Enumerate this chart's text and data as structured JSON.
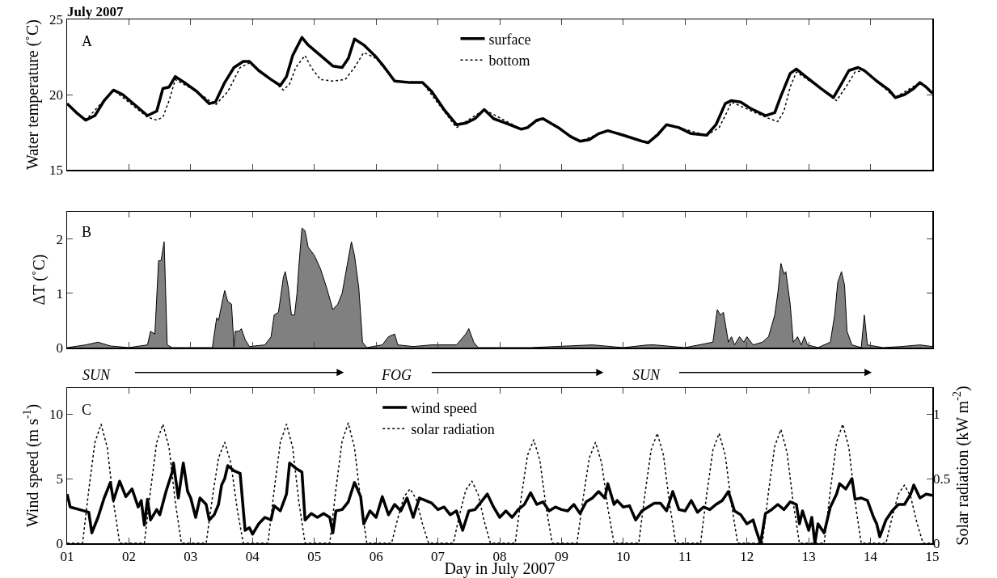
{
  "chart_data": [
    {
      "type": "line",
      "title": "July 2007",
      "ylabel": "Water temperature (˚C)",
      "annotations": [
        "A"
      ],
      "legend": "top",
      "tick_labels": "y",
      "xlim": [
        1,
        15
      ],
      "xticks": [
        {
          "value": 1,
          "label": null
        },
        {
          "value": 2,
          "label": null
        },
        {
          "value": 3,
          "label": null
        },
        {
          "value": 4,
          "label": null
        },
        {
          "value": 5,
          "label": null
        },
        {
          "value": 6,
          "label": null
        },
        {
          "value": 7,
          "label": null
        },
        {
          "value": 8,
          "label": null
        },
        {
          "value": 9,
          "label": null
        },
        {
          "value": 10,
          "label": null
        },
        {
          "value": 11,
          "label": null
        },
        {
          "value": 12,
          "label": null
        },
        {
          "value": 13,
          "label": null
        },
        {
          "value": 14,
          "label": null
        },
        {
          "value": 15,
          "label": null
        }
      ],
      "ylim": [
        15,
        25
      ],
      "yticks": [
        15,
        20,
        25
      ],
      "series": [
        {
          "name": "surface",
          "color": "#000000",
          "line_style": "solid",
          "x": [
            1.0,
            1.15,
            1.3,
            1.45,
            1.6,
            1.75,
            1.9,
            2.1,
            2.3,
            2.45,
            2.55,
            2.65,
            2.75,
            2.9,
            3.1,
            3.3,
            3.4,
            3.55,
            3.7,
            3.85,
            3.95,
            4.1,
            4.3,
            4.45,
            4.55,
            4.65,
            4.8,
            4.9,
            5.1,
            5.3,
            5.45,
            5.55,
            5.65,
            5.8,
            6.0,
            6.1,
            6.3,
            6.55,
            6.75,
            6.9,
            7.1,
            7.3,
            7.45,
            7.6,
            7.75,
            7.9,
            8.1,
            8.35,
            8.45,
            8.6,
            8.7,
            8.95,
            9.15,
            9.3,
            9.45,
            9.6,
            9.75,
            10.0,
            10.3,
            10.4,
            10.55,
            10.7,
            10.9,
            11.1,
            11.35,
            11.5,
            11.65,
            11.75,
            11.9,
            12.05,
            12.3,
            12.45,
            12.55,
            12.7,
            12.8,
            12.95,
            13.2,
            13.4,
            13.5,
            13.65,
            13.8,
            13.9,
            14.1,
            14.3,
            14.4,
            14.55,
            14.7,
            14.8,
            14.9,
            15.0
          ],
          "values": [
            19.4,
            18.8,
            18.3,
            18.6,
            19.6,
            20.3,
            20.0,
            19.3,
            18.6,
            18.9,
            20.4,
            20.5,
            21.2,
            20.8,
            20.2,
            19.4,
            19.5,
            20.8,
            21.8,
            22.2,
            22.2,
            21.6,
            21.0,
            20.6,
            21.2,
            22.6,
            23.8,
            23.3,
            22.6,
            21.9,
            21.8,
            22.4,
            23.7,
            23.3,
            22.5,
            22.0,
            20.9,
            20.8,
            20.8,
            20.2,
            19.0,
            18.0,
            18.1,
            18.4,
            19.0,
            18.4,
            18.1,
            17.7,
            17.8,
            18.3,
            18.4,
            17.8,
            17.2,
            16.9,
            17.0,
            17.4,
            17.6,
            17.3,
            16.9,
            16.8,
            17.3,
            18.0,
            17.8,
            17.4,
            17.3,
            18.0,
            19.4,
            19.6,
            19.5,
            19.1,
            18.6,
            18.8,
            19.9,
            21.4,
            21.7,
            21.2,
            20.4,
            19.8,
            20.5,
            21.6,
            21.8,
            21.6,
            20.9,
            20.3,
            19.8,
            20.0,
            20.4,
            20.8,
            20.5,
            20.1
          ]
        },
        {
          "name": "bottom",
          "color": "#000000",
          "line_style": "dotted",
          "x": [
            1.0,
            1.3,
            1.75,
            2.3,
            2.45,
            2.55,
            2.65,
            2.75,
            3.1,
            3.4,
            3.6,
            3.8,
            3.95,
            4.3,
            4.5,
            4.6,
            4.7,
            4.85,
            4.95,
            5.1,
            5.3,
            5.5,
            5.65,
            5.8,
            6.0,
            6.3,
            6.75,
            7.3,
            7.75,
            8.35,
            8.7,
            9.3,
            9.75,
            10.4,
            10.7,
            11.35,
            11.55,
            11.65,
            11.75,
            12.3,
            12.5,
            12.6,
            12.7,
            12.8,
            13.2,
            13.45,
            13.6,
            13.75,
            13.9,
            14.4,
            14.8,
            15.0
          ],
          "values": [
            19.4,
            18.3,
            20.3,
            18.5,
            18.3,
            18.5,
            19.6,
            21.0,
            20.2,
            19.3,
            20.2,
            21.8,
            22.1,
            21.0,
            20.3,
            20.7,
            21.8,
            22.6,
            21.8,
            21.0,
            20.9,
            21.0,
            21.8,
            22.8,
            22.4,
            20.9,
            20.8,
            17.8,
            19.0,
            17.7,
            18.4,
            16.9,
            17.6,
            16.8,
            18.0,
            17.3,
            17.8,
            18.6,
            19.5,
            18.5,
            18.2,
            18.9,
            20.5,
            21.5,
            20.4,
            19.6,
            20.5,
            21.5,
            21.6,
            19.8,
            20.8,
            20.1
          ]
        }
      ]
    },
    {
      "type": "area",
      "ylabel": "ΔT (˚C)",
      "annotations": [
        "B"
      ],
      "tick_labels": "y",
      "xlim": [
        1,
        15
      ],
      "xticks": [
        {
          "value": 1,
          "label": null
        },
        {
          "value": 2,
          "label": null
        },
        {
          "value": 3,
          "label": null
        },
        {
          "value": 4,
          "label": null
        },
        {
          "value": 5,
          "label": null
        },
        {
          "value": 6,
          "label": null
        },
        {
          "value": 7,
          "label": null
        },
        {
          "value": 8,
          "label": null
        },
        {
          "value": 9,
          "label": null
        },
        {
          "value": 10,
          "label": null
        },
        {
          "value": 11,
          "label": null
        },
        {
          "value": 12,
          "label": null
        },
        {
          "value": 13,
          "label": null
        },
        {
          "value": 14,
          "label": null
        },
        {
          "value": 15,
          "label": null
        }
      ],
      "ylim": [
        0,
        2.5
      ],
      "yticks": [
        0,
        1,
        2
      ],
      "series": [
        {
          "color": "#808080",
          "x": [
            1.0,
            1.3,
            1.5,
            1.7,
            2.0,
            2.3,
            2.35,
            2.42,
            2.48,
            2.52,
            2.57,
            2.62,
            2.7,
            3.35,
            3.42,
            3.45,
            3.52,
            3.55,
            3.6,
            3.66,
            3.7,
            3.72,
            3.78,
            3.82,
            3.88,
            3.95,
            4.2,
            4.3,
            4.35,
            4.42,
            4.5,
            4.53,
            4.58,
            4.63,
            4.68,
            4.72,
            4.75,
            4.8,
            4.85,
            4.9,
            5.0,
            5.1,
            5.2,
            5.3,
            5.38,
            5.45,
            5.6,
            5.65,
            5.72,
            5.78,
            5.85,
            6.1,
            6.2,
            6.3,
            6.35,
            6.6,
            6.9,
            7.3,
            7.45,
            7.5,
            7.58,
            7.65,
            8.5,
            9.5,
            10.0,
            10.4,
            10.5,
            11.0,
            11.45,
            11.52,
            11.57,
            11.62,
            11.7,
            11.75,
            11.8,
            11.88,
            11.95,
            12.0,
            12.1,
            12.25,
            12.35,
            12.45,
            12.5,
            12.55,
            12.6,
            12.63,
            12.7,
            12.75,
            12.82,
            12.88,
            12.93,
            12.98,
            13.15,
            13.35,
            13.42,
            13.47,
            13.53,
            13.58,
            13.62,
            13.7,
            13.85,
            13.9,
            13.95,
            14.2,
            14.5,
            14.8,
            15.0
          ],
          "values": [
            0,
            0.05,
            0.1,
            0.03,
            0,
            0.05,
            0.3,
            0.25,
            1.6,
            1.6,
            1.95,
            0.05,
            0,
            0,
            0.55,
            0.5,
            0.9,
            1.05,
            0.85,
            0.8,
            0.02,
            0.3,
            0.3,
            0.35,
            0.15,
            0.02,
            0.05,
            0.2,
            0.6,
            0.65,
            1.3,
            1.4,
            1.1,
            0.6,
            0.6,
            1.0,
            1.5,
            2.2,
            2.15,
            1.85,
            1.7,
            1.45,
            1.1,
            0.7,
            0.8,
            1.0,
            1.95,
            1.7,
            1.1,
            0.1,
            0,
            0.05,
            0.2,
            0.25,
            0.05,
            0.02,
            0.05,
            0.05,
            0.25,
            0.35,
            0.1,
            0,
            0,
            0.05,
            0,
            0.05,
            0.05,
            0,
            0.1,
            0.7,
            0.6,
            0.65,
            0.1,
            0.2,
            0.05,
            0.2,
            0.1,
            0.2,
            0.05,
            0.1,
            0.2,
            0.6,
            1.0,
            1.55,
            1.35,
            1.4,
            0.8,
            0.1,
            0.2,
            0.05,
            0.2,
            0.05,
            0,
            0.1,
            0.6,
            1.2,
            1.4,
            1.15,
            0.3,
            0.05,
            0,
            0.6,
            0.05,
            0,
            0.02,
            0.05,
            0.02
          ]
        }
      ]
    },
    {
      "type": "line",
      "xlabel": "Day in July 2007",
      "ylabel": "Wind speed (m s$^{-1}$)",
      "y2label": "Solar radiation (kW m$^{-2}$)",
      "annotations": [
        "C",
        "SUN",
        "FOG",
        "SUN"
      ],
      "legend": "top",
      "xlim": [
        1,
        15
      ],
      "xticks": [
        {
          "value": 1,
          "label": "01"
        },
        {
          "value": 2,
          "label": "02"
        },
        {
          "value": 3,
          "label": "03"
        },
        {
          "value": 4,
          "label": "04"
        },
        {
          "value": 5,
          "label": "05"
        },
        {
          "value": 6,
          "label": "06"
        },
        {
          "value": 7,
          "label": "07"
        },
        {
          "value": 8,
          "label": "08"
        },
        {
          "value": 9,
          "label": "09"
        },
        {
          "value": 10,
          "label": "10"
        },
        {
          "value": 11,
          "label": "11"
        },
        {
          "value": 12,
          "label": "12"
        },
        {
          "value": 13,
          "label": "13"
        },
        {
          "value": 14,
          "label": "14"
        },
        {
          "value": 15,
          "label": "15"
        }
      ],
      "ylim": [
        0,
        12
      ],
      "yticks": [
        0,
        5,
        10
      ],
      "y2lim": [
        0,
        1.2
      ],
      "y2ticks": [
        0,
        0.5,
        1
      ],
      "series": [
        {
          "name": "wind speed",
          "color": "#000000",
          "line_style": "solid",
          "x": [
            1.0,
            1.05,
            1.2,
            1.35,
            1.4,
            1.5,
            1.6,
            1.7,
            1.75,
            1.85,
            1.95,
            2.05,
            2.15,
            2.2,
            2.25,
            2.3,
            2.35,
            2.45,
            2.5,
            2.6,
            2.7,
            2.72,
            2.8,
            2.88,
            2.95,
            3.0,
            3.08,
            3.15,
            3.25,
            3.3,
            3.38,
            3.45,
            3.5,
            3.55,
            3.6,
            3.7,
            3.8,
            3.88,
            3.95,
            4.0,
            4.1,
            4.2,
            4.3,
            4.35,
            4.45,
            4.55,
            4.6,
            4.7,
            4.8,
            4.85,
            4.95,
            5.05,
            5.15,
            5.25,
            5.3,
            5.35,
            5.45,
            5.55,
            5.65,
            5.75,
            5.8,
            5.9,
            6.0,
            6.1,
            6.2,
            6.3,
            6.4,
            6.5,
            6.6,
            6.7,
            6.8,
            6.9,
            7.0,
            7.1,
            7.2,
            7.3,
            7.4,
            7.5,
            7.6,
            7.7,
            7.8,
            7.9,
            8.0,
            8.1,
            8.2,
            8.3,
            8.4,
            8.5,
            8.6,
            8.7,
            8.8,
            8.9,
            9.0,
            9.1,
            9.2,
            9.3,
            9.4,
            9.5,
            9.6,
            9.7,
            9.75,
            9.85,
            9.9,
            10.0,
            10.1,
            10.2,
            10.3,
            10.4,
            10.5,
            10.6,
            10.7,
            10.8,
            10.9,
            11.0,
            11.1,
            11.2,
            11.3,
            11.4,
            11.5,
            11.6,
            11.7,
            11.8,
            11.9,
            12.0,
            12.1,
            12.15,
            12.22,
            12.3,
            12.4,
            12.5,
            12.6,
            12.7,
            12.8,
            12.85,
            12.9,
            13.0,
            13.05,
            13.1,
            13.15,
            13.25,
            13.35,
            13.45,
            13.5,
            13.6,
            13.7,
            13.75,
            13.85,
            13.95,
            14.05,
            14.1,
            14.15,
            14.25,
            14.35,
            14.45,
            14.55,
            14.65,
            14.7,
            14.8,
            14.9,
            15.0
          ],
          "values": [
            3.8,
            2.8,
            2.6,
            2.4,
            0.8,
            2.0,
            3.5,
            4.7,
            3.3,
            4.8,
            3.6,
            4.2,
            2.8,
            3.3,
            1.4,
            3.4,
            1.8,
            2.6,
            2.2,
            4.0,
            5.5,
            6.2,
            3.5,
            6.2,
            4.0,
            3.5,
            2.0,
            3.5,
            3.0,
            1.8,
            2.2,
            3.0,
            4.5,
            5.0,
            6.0,
            5.6,
            5.4,
            1.0,
            1.2,
            0.7,
            1.5,
            2.0,
            1.8,
            2.9,
            2.5,
            3.8,
            6.2,
            5.8,
            5.5,
            1.8,
            2.3,
            2.0,
            2.3,
            2.0,
            0.8,
            2.5,
            2.6,
            3.2,
            4.7,
            3.6,
            1.5,
            2.5,
            2.0,
            3.6,
            2.2,
            3.0,
            2.5,
            3.5,
            2.0,
            3.5,
            3.3,
            3.1,
            2.6,
            2.8,
            2.2,
            2.5,
            1.0,
            2.5,
            2.6,
            3.2,
            3.8,
            2.8,
            2.0,
            2.5,
            2.0,
            2.6,
            3.0,
            3.9,
            3.0,
            3.2,
            2.5,
            2.8,
            2.6,
            2.5,
            3.0,
            2.3,
            3.2,
            3.5,
            4.0,
            3.5,
            4.6,
            3.0,
            3.3,
            2.8,
            2.9,
            1.8,
            2.5,
            2.8,
            3.1,
            3.1,
            2.5,
            4.0,
            2.6,
            2.5,
            3.3,
            2.4,
            2.8,
            2.6,
            3.0,
            3.3,
            4.0,
            2.5,
            2.2,
            1.5,
            1.8,
            1.0,
            0,
            2.3,
            2.6,
            3.0,
            2.6,
            3.2,
            3.0,
            1.5,
            2.5,
            1.0,
            2.0,
            0,
            1.5,
            0.8,
            2.8,
            3.8,
            4.6,
            4.2,
            5.0,
            3.4,
            3.5,
            3.3,
            2.0,
            1.5,
            0.5,
            1.8,
            2.5,
            3.0,
            3.0,
            3.8,
            4.5,
            3.5,
            3.8,
            3.7
          ]
        },
        {
          "name": "solar radiation",
          "color": "#000000",
          "line_style": "dotted",
          "axis": "y2",
          "x": [
            1.0,
            1.25,
            1.35,
            1.45,
            1.55,
            1.65,
            1.75,
            1.85,
            2.25,
            2.35,
            2.45,
            2.55,
            2.65,
            2.75,
            2.85,
            3.25,
            3.35,
            3.45,
            3.55,
            3.65,
            3.75,
            3.85,
            4.25,
            4.35,
            4.45,
            4.55,
            4.65,
            4.75,
            4.85,
            5.25,
            5.35,
            5.45,
            5.55,
            5.65,
            5.75,
            5.85,
            6.25,
            6.35,
            6.45,
            6.55,
            6.65,
            6.75,
            6.85,
            7.25,
            7.35,
            7.45,
            7.55,
            7.65,
            7.75,
            7.85,
            8.25,
            8.35,
            8.45,
            8.55,
            8.65,
            8.75,
            8.85,
            9.25,
            9.35,
            9.45,
            9.55,
            9.65,
            9.75,
            9.85,
            10.25,
            10.35,
            10.45,
            10.55,
            10.65,
            10.75,
            10.85,
            11.25,
            11.35,
            11.45,
            11.55,
            11.65,
            11.75,
            11.85,
            12.25,
            12.35,
            12.45,
            12.55,
            12.65,
            12.75,
            12.85,
            13.25,
            13.35,
            13.45,
            13.55,
            13.65,
            13.75,
            13.85,
            14.25,
            14.35,
            14.45,
            14.55,
            14.65,
            14.75,
            14.85,
            15.0
          ],
          "values": [
            0,
            0,
            0.41,
            0.78,
            0.92,
            0.74,
            0.32,
            0,
            0,
            0.41,
            0.78,
            0.92,
            0.74,
            0.32,
            0,
            0,
            0.35,
            0.66,
            0.78,
            0.62,
            0.27,
            0,
            0,
            0.41,
            0.78,
            0.92,
            0.74,
            0.32,
            0,
            0,
            0.42,
            0.79,
            0.93,
            0.74,
            0.33,
            0,
            0,
            0.19,
            0.36,
            0.42,
            0.34,
            0.15,
            0,
            0,
            0.22,
            0.41,
            0.48,
            0.38,
            0.17,
            0,
            0,
            0.36,
            0.68,
            0.8,
            0.64,
            0.28,
            0,
            0,
            0.35,
            0.66,
            0.78,
            0.62,
            0.27,
            0,
            0,
            0.38,
            0.72,
            0.85,
            0.68,
            0.3,
            0,
            0,
            0.38,
            0.72,
            0.85,
            0.68,
            0.3,
            0,
            0,
            0.4,
            0.75,
            0.88,
            0.7,
            0.31,
            0,
            0,
            0.41,
            0.78,
            0.92,
            0.74,
            0.32,
            0,
            0,
            0.2,
            0.38,
            0.45,
            0.36,
            0.16,
            0,
            0
          ]
        }
      ]
    }
  ]
}
